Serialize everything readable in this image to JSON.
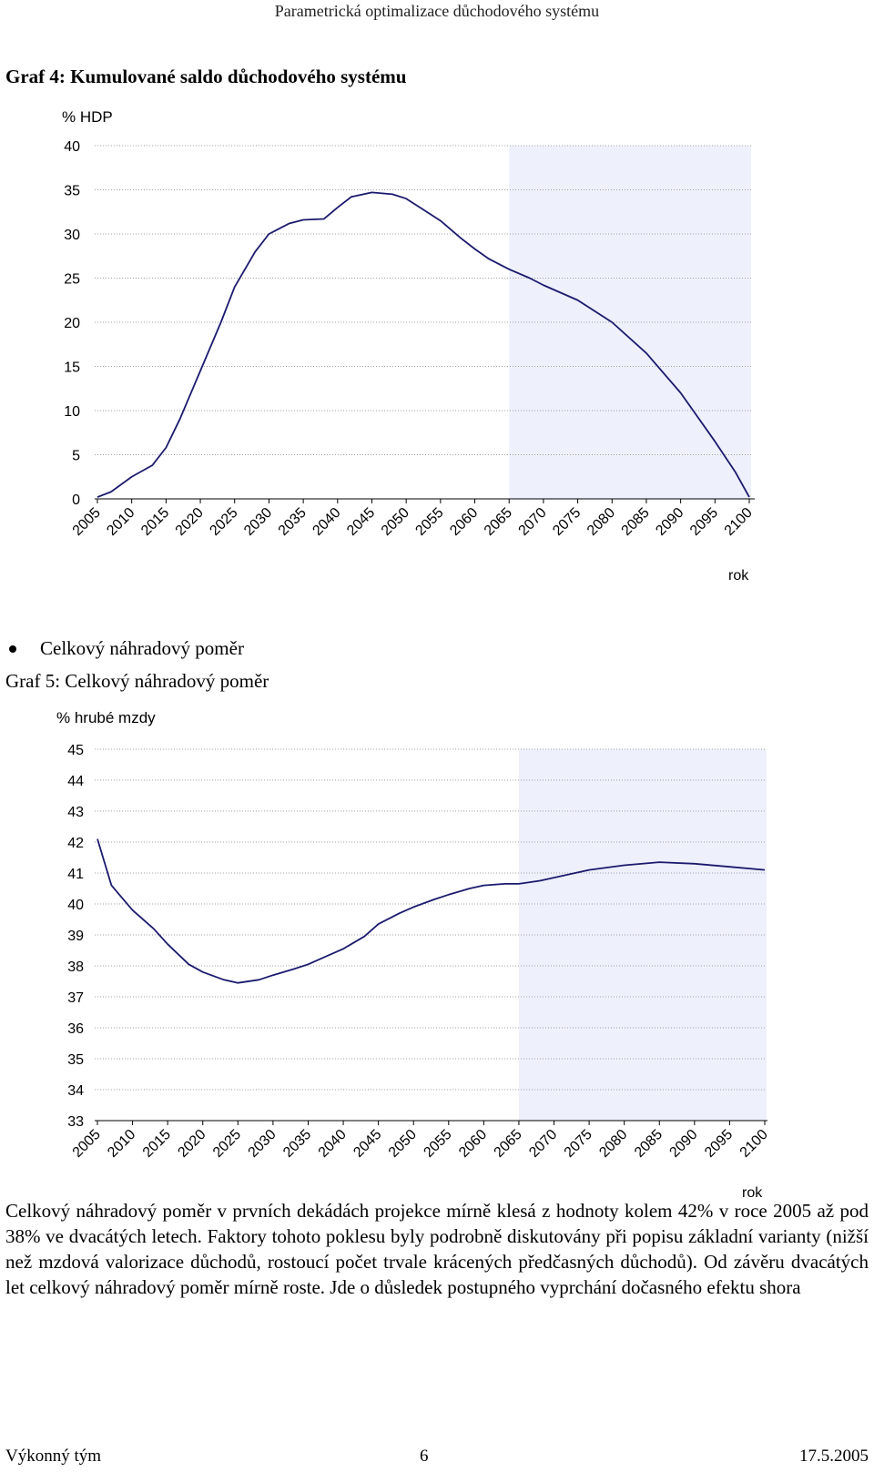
{
  "header": {
    "title": "Parametrická optimalizace důchodového systému"
  },
  "graph4": {
    "caption": "Graf 4: Kumulované saldo důchodového systému"
  },
  "bullet": {
    "text": "Celkový náhradový poměr"
  },
  "graph5": {
    "caption": "Graf 5: Celkový náhradový poměr"
  },
  "paragraph": "Celkový náhradový poměr v prvních dekádách projekce mírně klesá z hodnoty kolem 42% v roce 2005 až pod 38% ve dvacátých letech. Faktory tohoto poklesu byly podrobně diskutovány při popisu základní varianty (nižší než mzdová valorizace důchodů, rostoucí počet trvale krácených předčasných důchodů). Od závěru dvacátých let celkový náhradový poměr mírně roste. Jde o důsledek postupného vyprchání dočasného efektu shora",
  "footer": {
    "left": "Výkonný tým",
    "center": "6",
    "right": "17.5.2005"
  },
  "colors": {
    "line": "#1a1a6e",
    "shade": "#eef0fb",
    "grid": "#a0a0a0"
  },
  "chart_data": [
    {
      "type": "line",
      "title": "Graf 4: Kumulované saldo důchodového systému",
      "ylabel": "% HDP",
      "xlabel": "rok",
      "ylim": [
        0,
        40
      ],
      "yticks": [
        0,
        5,
        10,
        15,
        20,
        25,
        30,
        35,
        40
      ],
      "xlim": [
        2005,
        2100
      ],
      "xticks": [
        "2005",
        "2010",
        "2015",
        "2020",
        "2025",
        "2030",
        "2035",
        "2040",
        "2045",
        "2050",
        "2055",
        "2060",
        "2065",
        "2070",
        "2075",
        "2080",
        "2085",
        "2090",
        "2095",
        "2100"
      ],
      "shaded_from": 2065,
      "x": [
        2005,
        2007,
        2010,
        2013,
        2015,
        2017,
        2020,
        2023,
        2025,
        2028,
        2030,
        2033,
        2035,
        2038,
        2040,
        2042,
        2045,
        2048,
        2050,
        2052,
        2055,
        2058,
        2060,
        2062,
        2065,
        2068,
        2070,
        2075,
        2080,
        2085,
        2090,
        2095,
        2098,
        2100
      ],
      "y": [
        0.2,
        0.8,
        2.5,
        3.8,
        5.8,
        9,
        14.5,
        20,
        24,
        28,
        30,
        31.2,
        31.6,
        31.7,
        33,
        34.2,
        34.7,
        34.5,
        34,
        33,
        31.5,
        29.5,
        28.3,
        27.2,
        26,
        25,
        24.2,
        22.5,
        20,
        16.5,
        12,
        6.5,
        3,
        0.2
      ]
    },
    {
      "type": "line",
      "title": "Graf 5: Celkový náhradový poměr",
      "ylabel": "% hrubé mzdy",
      "xlabel": "rok",
      "ylim": [
        33,
        45
      ],
      "yticks": [
        33,
        34,
        35,
        36,
        37,
        38,
        39,
        40,
        41,
        42,
        43,
        44,
        45
      ],
      "xlim": [
        2005,
        2100
      ],
      "xticks": [
        "2005",
        "2010",
        "2015",
        "2020",
        "2025",
        "2030",
        "2035",
        "2040",
        "2045",
        "2050",
        "2055",
        "2060",
        "2065",
        "2070",
        "2075",
        "2080",
        "2085",
        "2090",
        "2095",
        "2100"
      ],
      "shaded_from": 2065,
      "x": [
        2005,
        2007,
        2010,
        2013,
        2015,
        2018,
        2020,
        2023,
        2025,
        2028,
        2030,
        2033,
        2035,
        2038,
        2040,
        2043,
        2045,
        2048,
        2050,
        2053,
        2055,
        2058,
        2060,
        2063,
        2065,
        2068,
        2070,
        2073,
        2075,
        2080,
        2085,
        2090,
        2095,
        2100
      ],
      "y": [
        42.1,
        40.6,
        39.8,
        39.2,
        38.7,
        38.05,
        37.8,
        37.55,
        37.45,
        37.55,
        37.7,
        37.9,
        38.05,
        38.35,
        38.55,
        38.95,
        39.35,
        39.7,
        39.9,
        40.15,
        40.3,
        40.5,
        40.6,
        40.65,
        40.65,
        40.75,
        40.85,
        41.0,
        41.1,
        41.25,
        41.35,
        41.3,
        41.2,
        41.1
      ]
    }
  ]
}
